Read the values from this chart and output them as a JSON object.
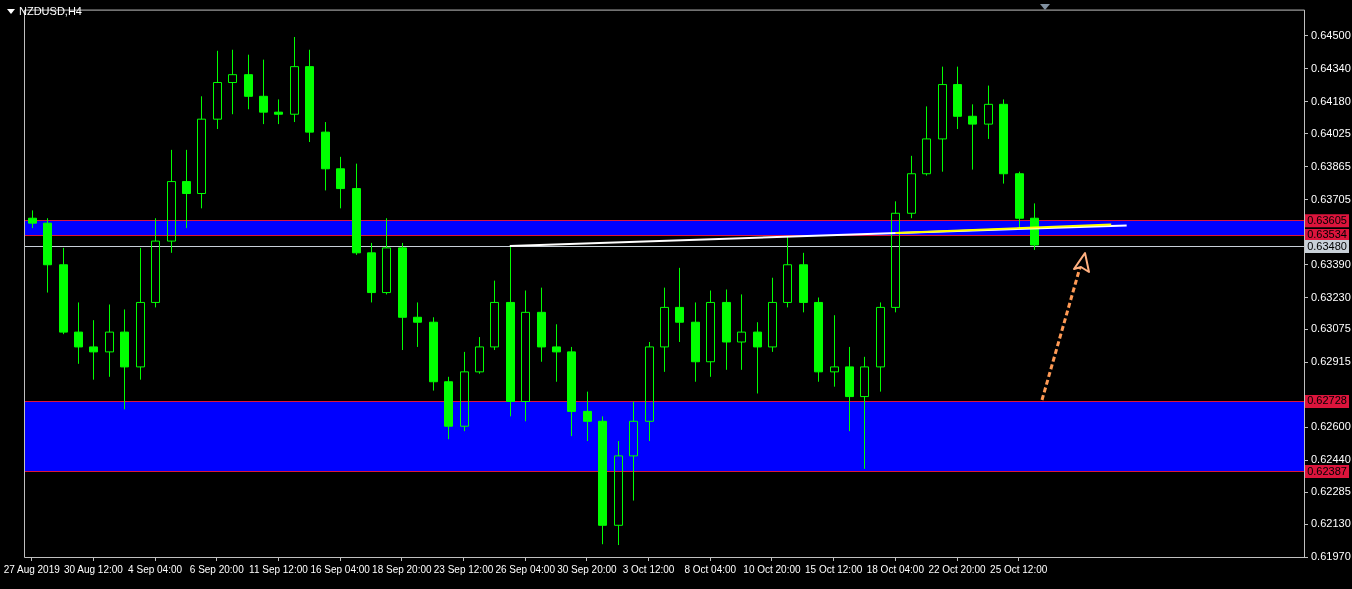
{
  "chart_data": {
    "type": "candlestick",
    "title": "NZDUSD,H4",
    "color": "#00ff00",
    "categories": [
      "27 Aug 2019",
      null,
      null,
      null,
      "30 Aug 12:00",
      null,
      null,
      null,
      "4 Sep 04:00",
      null,
      null,
      null,
      "6 Sep 20:00",
      null,
      null,
      null,
      "11 Sep 12:00",
      null,
      null,
      null,
      "16 Sep 04:00",
      null,
      null,
      null,
      "18 Sep 20:00",
      null,
      null,
      null,
      "23 Sep 12:00",
      null,
      null,
      null,
      "26 Sep 04:00",
      null,
      null,
      null,
      "30 Sep 20:00",
      null,
      null,
      null,
      "3 Oct 12:00",
      null,
      null,
      null,
      "8 Oct 04:00",
      null,
      null,
      null,
      "10 Oct 20:00",
      null,
      null,
      null,
      "15 Oct 12:00",
      null,
      null,
      null,
      "18 Oct 04:00",
      null,
      null,
      null,
      "22 Oct 20:00",
      null,
      null,
      null,
      "25 Oct 12:00",
      null,
      null,
      null,
      null,
      null,
      null,
      null,
      null,
      null,
      null,
      null,
      null,
      null,
      null,
      null,
      null,
      null,
      null
    ],
    "ohlc": [
      [
        0.63615,
        0.63653,
        0.63567,
        0.63591
      ],
      [
        0.63591,
        0.63615,
        0.63254,
        0.63389
      ],
      [
        0.63389,
        0.63471,
        0.63052,
        0.63062
      ],
      [
        0.63062,
        0.63206,
        0.62908,
        0.6299
      ],
      [
        0.6299,
        0.6312,
        0.62831,
        0.62966
      ],
      [
        0.62966,
        0.63196,
        0.62845,
        0.63062
      ],
      [
        0.63062,
        0.63172,
        0.62687,
        0.62893
      ],
      [
        0.62893,
        0.63471,
        0.62831,
        0.63206
      ],
      [
        0.63206,
        0.63615,
        0.63182,
        0.63504
      ],
      [
        0.63504,
        0.63947,
        0.63447,
        0.63793
      ],
      [
        0.63793,
        0.63947,
        0.63567,
        0.63735
      ],
      [
        0.63735,
        0.64207,
        0.63663,
        0.64096
      ],
      [
        0.64096,
        0.64428,
        0.64048,
        0.64274
      ],
      [
        0.64274,
        0.64433,
        0.6412,
        0.64312
      ],
      [
        0.64312,
        0.64409,
        0.64144,
        0.64207
      ],
      [
        0.64207,
        0.64385,
        0.64072,
        0.6413
      ],
      [
        0.6413,
        0.64192,
        0.64072,
        0.6412
      ],
      [
        0.6412,
        0.64495,
        0.64082,
        0.64351
      ],
      [
        0.64351,
        0.64433,
        0.63985,
        0.64033
      ],
      [
        0.64033,
        0.64082,
        0.6375,
        0.63855
      ],
      [
        0.63855,
        0.63913,
        0.63663,
        0.63759
      ],
      [
        0.63759,
        0.6388,
        0.63437,
        0.63447
      ],
      [
        0.63447,
        0.63495,
        0.63206,
        0.63254
      ],
      [
        0.63254,
        0.63615,
        0.63245,
        0.63471
      ],
      [
        0.63471,
        0.63495,
        0.62975,
        0.63134
      ],
      [
        0.63134,
        0.63206,
        0.6299,
        0.6311
      ],
      [
        0.6311,
        0.63134,
        0.62778,
        0.62821
      ],
      [
        0.62821,
        0.62845,
        0.62542,
        0.62605
      ],
      [
        0.62605,
        0.62966,
        0.62581,
        0.62869
      ],
      [
        0.62869,
        0.63038,
        0.6286,
        0.6299
      ],
      [
        0.6299,
        0.63312,
        0.62975,
        0.63206
      ],
      [
        0.63206,
        0.6348,
        0.62653,
        0.62725
      ],
      [
        0.62725,
        0.63264,
        0.62629,
        0.63158
      ],
      [
        0.63158,
        0.63278,
        0.62918,
        0.6299
      ],
      [
        0.6299,
        0.631,
        0.62821,
        0.62966
      ],
      [
        0.62966,
        0.6299,
        0.62557,
        0.62677
      ],
      [
        0.62677,
        0.62773,
        0.62533,
        0.62629
      ],
      [
        0.62629,
        0.62653,
        0.62032,
        0.62124
      ],
      [
        0.62124,
        0.62533,
        0.62028,
        0.62461
      ],
      [
        0.62461,
        0.62725,
        0.62244,
        0.62629
      ],
      [
        0.62629,
        0.63014,
        0.62533,
        0.6299
      ],
      [
        0.6299,
        0.63278,
        0.62869,
        0.63182
      ],
      [
        0.63182,
        0.63374,
        0.63014,
        0.6311
      ],
      [
        0.6311,
        0.63206,
        0.62821,
        0.62918
      ],
      [
        0.62918,
        0.63264,
        0.62845,
        0.63206
      ],
      [
        0.63206,
        0.63269,
        0.62879,
        0.63014
      ],
      [
        0.63014,
        0.63245,
        0.62879,
        0.63062
      ],
      [
        0.63062,
        0.6311,
        0.62764,
        0.6299
      ],
      [
        0.6299,
        0.63326,
        0.62966,
        0.63206
      ],
      [
        0.63206,
        0.63528,
        0.63182,
        0.63389
      ],
      [
        0.63389,
        0.63447,
        0.63158,
        0.63206
      ],
      [
        0.63206,
        0.6323,
        0.62821,
        0.62869
      ],
      [
        0.62869,
        0.63144,
        0.62797,
        0.62893
      ],
      [
        0.62893,
        0.6299,
        0.62581,
        0.62749
      ],
      [
        0.62749,
        0.62942,
        0.62398,
        0.62893
      ],
      [
        0.62893,
        0.63206,
        0.62773,
        0.63182
      ],
      [
        0.63182,
        0.63697,
        0.63158,
        0.63639
      ],
      [
        0.63639,
        0.63918,
        0.63615,
        0.63831
      ],
      [
        0.63831,
        0.64158,
        0.63822,
        0.64
      ],
      [
        0.64,
        0.64351,
        0.63841,
        0.64264
      ],
      [
        0.64264,
        0.64351,
        0.64048,
        0.6411
      ],
      [
        0.6411,
        0.64168,
        0.63851,
        0.64072
      ],
      [
        0.64072,
        0.64259,
        0.64,
        0.64168
      ],
      [
        0.64168,
        0.64192,
        0.63783,
        0.63831
      ],
      [
        0.63831,
        0.63841,
        0.63567,
        0.63615
      ],
      [
        0.63615,
        0.63687,
        0.63461,
        0.63485
      ],
      null,
      null,
      null,
      null,
      null,
      null,
      null,
      null,
      null,
      null,
      null,
      null,
      null,
      null,
      null,
      null,
      null
    ],
    "series": [
      {
        "type": "line",
        "color": "#ffffff",
        "values": [
          null,
          null,
          null,
          null,
          null,
          null,
          null,
          null,
          null,
          null,
          null,
          null,
          null,
          null,
          null,
          null,
          null,
          null,
          null,
          null,
          null,
          null,
          null,
          null,
          null,
          null,
          null,
          null,
          null,
          null,
          null,
          0.6348,
          null,
          null,
          null,
          null,
          null,
          null,
          null,
          null,
          null,
          null,
          null,
          null,
          null,
          null,
          null,
          null,
          null,
          null,
          null,
          null,
          null,
          null,
          null,
          null,
          null,
          null,
          null,
          null,
          null,
          null,
          null,
          null,
          null,
          null,
          null,
          null,
          null,
          null,
          null,
          0.6358,
          null,
          null,
          null,
          null,
          null,
          null,
          null,
          null,
          null,
          null,
          null
        ]
      },
      {
        "type": "line",
        "color": "#ffff00",
        "values": [
          null,
          null,
          null,
          null,
          null,
          null,
          null,
          null,
          null,
          null,
          null,
          null,
          null,
          null,
          null,
          null,
          null,
          null,
          null,
          null,
          null,
          null,
          null,
          null,
          null,
          null,
          null,
          null,
          null,
          null,
          null,
          null,
          null,
          null,
          null,
          null,
          null,
          null,
          null,
          null,
          null,
          null,
          null,
          null,
          null,
          null,
          null,
          null,
          null,
          null,
          null,
          null,
          null,
          null,
          null,
          null,
          0.63543,
          null,
          null,
          null,
          null,
          null,
          null,
          null,
          null,
          null,
          null,
          null,
          null,
          null,
          0.63584,
          null,
          null,
          null,
          null,
          null,
          null,
          null,
          null,
          null,
          null,
          null,
          null
        ]
      }
    ],
    "ylim": [
      0.6197,
      0.64628
    ],
    "yticks": [
      {
        "value": 0.645,
        "label": "0.64500"
      },
      {
        "value": 0.6434,
        "label": "0.64340"
      },
      {
        "value": 0.6418,
        "label": "0.64180"
      },
      0.64025,
      0.63865,
      0.63705,
      {
        "value": 0.6339,
        "label": "0.63390"
      },
      {
        "value": 0.6323,
        "label": "0.63230"
      },
      0.63075,
      0.62915,
      {
        "value": 0.626,
        "label": "0.62600"
      },
      {
        "value": 0.6244,
        "label": "0.62440"
      },
      0.62285,
      {
        "value": 0.6213,
        "label": "0.62130"
      },
      {
        "value": 0.6197,
        "label": "0.61970"
      }
    ],
    "bands": [
      {
        "axis": "y",
        "from": 0.63534,
        "to": 0.63605,
        "color": "#0000ff"
      },
      {
        "axis": "y",
        "from": 0.62387,
        "to": 0.62728,
        "color": "#0000ff"
      }
    ],
    "ref_lines": [
      {
        "axis": "y",
        "value": 0.63605,
        "label": "0.63605",
        "color": "#dc143c"
      },
      {
        "axis": "y",
        "value": 0.63534,
        "label": "0.63534",
        "color": "#dc143c"
      },
      {
        "axis": "y",
        "value": 0.6348,
        "label": "0.63480",
        "color": "#c8d0d8"
      },
      {
        "axis": "y",
        "value": 0.62728,
        "label": "0.62728",
        "color": "#dc143c"
      },
      {
        "axis": "y",
        "value": 0.62387,
        "label": "0.62387",
        "color": "#dc143c"
      }
    ],
    "legend": false
  }
}
